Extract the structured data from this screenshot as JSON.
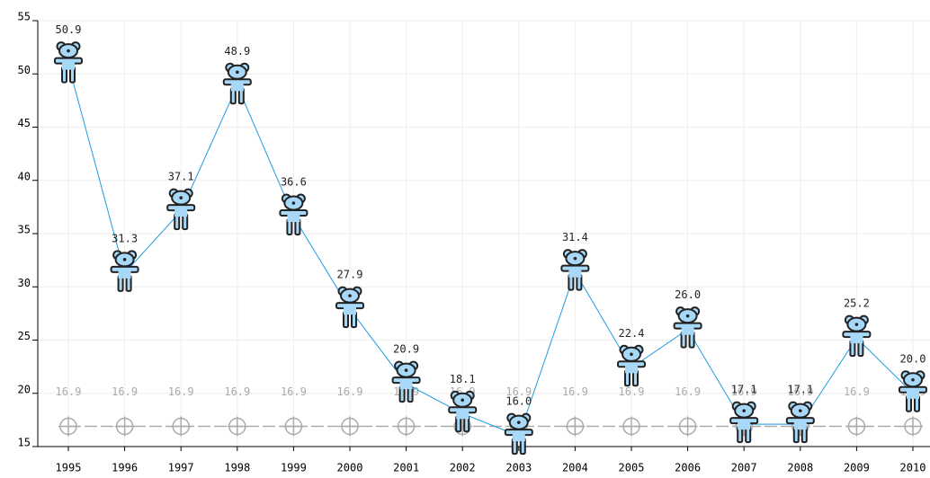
{
  "chart_data": {
    "type": "line",
    "categories": [
      "1995",
      "1996",
      "1997",
      "1998",
      "1999",
      "2000",
      "2001",
      "2002",
      "2003",
      "2004",
      "2005",
      "2006",
      "2007",
      "2008",
      "2009",
      "2010"
    ],
    "series": [
      {
        "color": "#1e9be0",
        "marker": "bear",
        "values": [
          50.9,
          31.3,
          37.1,
          48.9,
          36.6,
          27.9,
          20.9,
          18.1,
          16.0,
          31.4,
          22.4,
          26.0,
          17.1,
          17.1,
          25.2,
          20.0
        ],
        "value_labels": [
          "50.9",
          "31.3",
          "37.1",
          "48.9",
          "36.6",
          "27.9",
          "20.9",
          "18.1",
          "16.0",
          "31.4",
          "22.4",
          "26.0",
          "17.1",
          "17.1",
          "25.2",
          "20.0"
        ]
      },
      {
        "color": "#aaaaaa",
        "marker": "circle-cross",
        "dashed": true,
        "values": [
          16.9,
          16.9,
          16.9,
          16.9,
          16.9,
          16.9,
          16.9,
          16.9,
          16.9,
          16.9,
          16.9,
          16.9,
          16.9,
          16.9,
          16.9,
          16.9
        ]
      }
    ],
    "ylim": [
      15,
      55
    ],
    "yticks": [
      15,
      20,
      25,
      30,
      35,
      40,
      45,
      50,
      55
    ],
    "grid": true
  }
}
